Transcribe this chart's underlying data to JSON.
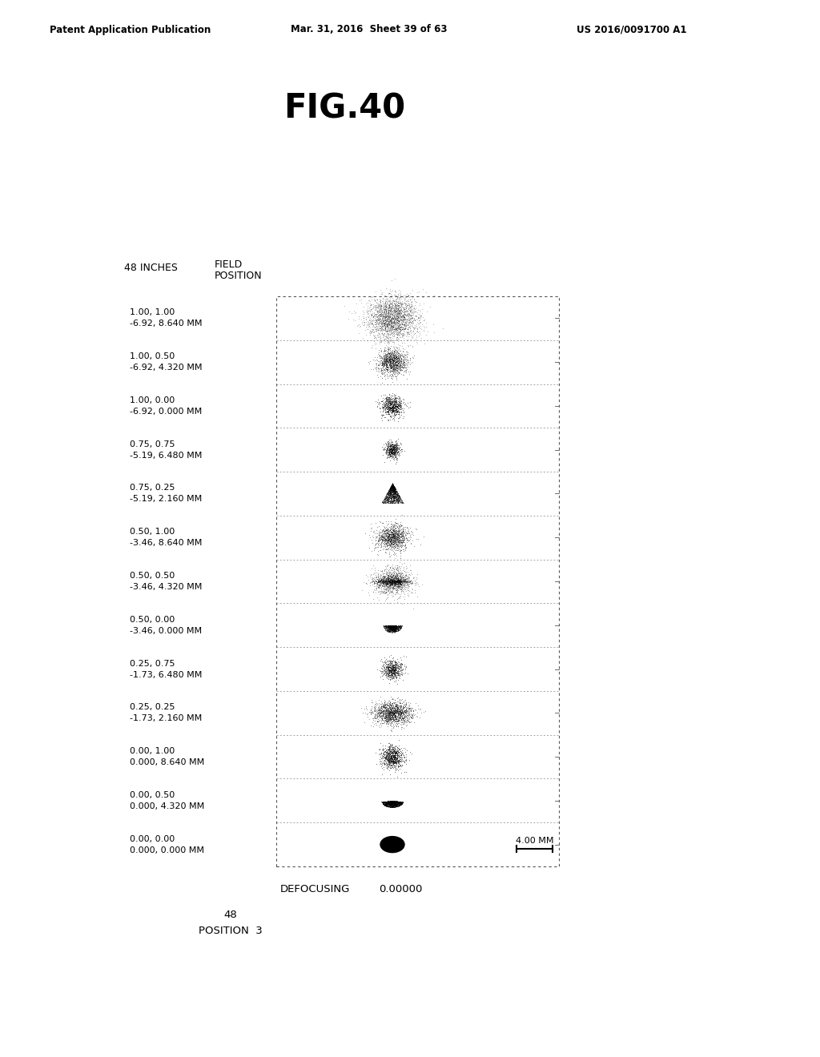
{
  "title": "FIG.40",
  "header_left": "Patent Application Publication",
  "header_mid": "Mar. 31, 2016  Sheet 39 of 63",
  "header_right": "US 2016/0091700 A1",
  "label_inches": "48 INCHES",
  "field_labels": [
    [
      "1.00, 1.00",
      "-6.92, 8.640 MM"
    ],
    [
      "1.00, 0.50",
      "-6.92, 4.320 MM"
    ],
    [
      "1.00, 0.00",
      "-6.92, 0.000 MM"
    ],
    [
      "0.75, 0.75",
      "-5.19, 6.480 MM"
    ],
    [
      "0.75, 0.25",
      "-5.19, 2.160 MM"
    ],
    [
      "0.50, 1.00",
      "-3.46, 8.640 MM"
    ],
    [
      "0.50, 0.50",
      "-3.46, 4.320 MM"
    ],
    [
      "0.50, 0.00",
      "-3.46, 0.000 MM"
    ],
    [
      "0.25, 0.75",
      "-1.73, 6.480 MM"
    ],
    [
      "0.25, 0.25",
      "-1.73, 2.160 MM"
    ],
    [
      "0.00, 1.00",
      "0.000, 8.640 MM"
    ],
    [
      "0.00, 0.50",
      "0.000, 4.320 MM"
    ],
    [
      "0.00, 0.00",
      "0.000, 0.000 MM"
    ]
  ],
  "defocusing_label": "DEFOCUSING",
  "defocusing_value": "0.00000",
  "scale_label": "4.00 MM",
  "background_color": "#ffffff",
  "text_color": "#000000"
}
